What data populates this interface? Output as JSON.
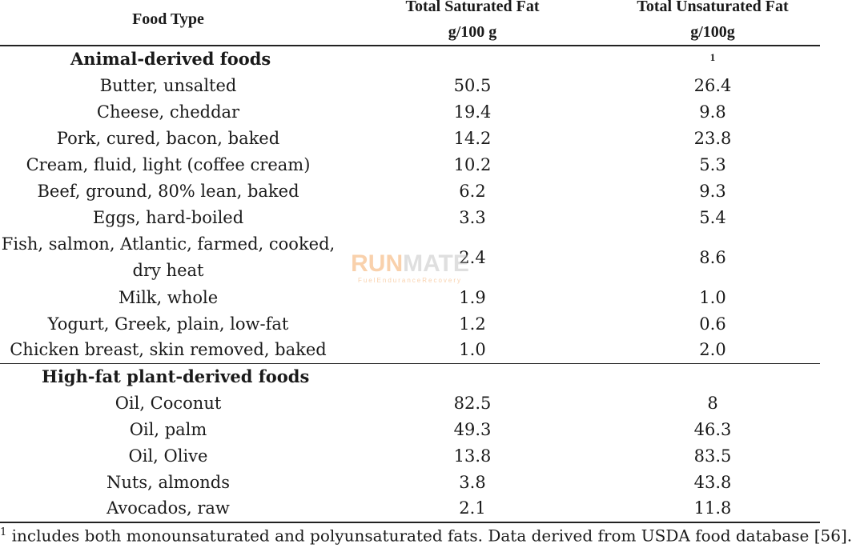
{
  "table": {
    "headers": {
      "food_type": "Food Type",
      "saturated_line1": "Total Saturated Fat",
      "saturated_line2": "g/100 g",
      "unsaturated_line1": "Total Unsaturated Fat",
      "unsaturated_line2": "g/100g",
      "unsaturated_footnote_mark": "1"
    },
    "sections": [
      {
        "title": "Animal-derived foods",
        "rows": [
          {
            "food": "Butter, unsalted",
            "saturated": "50.5",
            "unsaturated": "26.4"
          },
          {
            "food": "Cheese, cheddar",
            "saturated": "19.4",
            "unsaturated": "9.8"
          },
          {
            "food": "Pork, cured, bacon, baked",
            "saturated": "14.2",
            "unsaturated": "23.8"
          },
          {
            "food": "Cream, fluid, light (coffee cream)",
            "saturated": "10.2",
            "unsaturated": "5.3"
          },
          {
            "food": "Beef, ground, 80% lean, baked",
            "saturated": "6.2",
            "unsaturated": "9.3"
          },
          {
            "food": "Eggs, hard-boiled",
            "saturated": "3.3",
            "unsaturated": "5.4"
          },
          {
            "food_line1": "Fish, salmon, Atlantic, farmed, cooked,",
            "food_line2": "dry heat",
            "saturated": "2.4",
            "unsaturated": "8.6"
          },
          {
            "food": "Milk, whole",
            "saturated": "1.9",
            "unsaturated": "1.0"
          },
          {
            "food": "Yogurt, Greek, plain, low-fat",
            "saturated": "1.2",
            "unsaturated": "0.6"
          },
          {
            "food": "Chicken breast, skin removed, baked",
            "saturated": "1.0",
            "unsaturated": "2.0"
          }
        ]
      },
      {
        "title": "High-fat plant-derived foods",
        "rows": [
          {
            "food": "Oil, Coconut",
            "saturated": "82.5",
            "unsaturated": "8"
          },
          {
            "food": "Oil, palm",
            "saturated": "49.3",
            "unsaturated": "46.3"
          },
          {
            "food": "Oil, Olive",
            "saturated": "13.8",
            "unsaturated": "83.5"
          },
          {
            "food": "Nuts, almonds",
            "saturated": "3.8",
            "unsaturated": "43.8"
          },
          {
            "food": "Avocados, raw",
            "saturated": "2.1",
            "unsaturated": "11.8"
          }
        ]
      }
    ]
  },
  "footnote": {
    "mark": "1",
    "text": " includes both monounsaturated and polyunsaturated fats. Data derived from USDA food database [56]."
  },
  "watermark": {
    "brand_part1": "RUN",
    "brand_part2": "MATE",
    "tagline": "FuelEnduranceRecovery",
    "colors": {
      "accent": "#f29a4a",
      "secondary": "#b9b9b9"
    }
  }
}
